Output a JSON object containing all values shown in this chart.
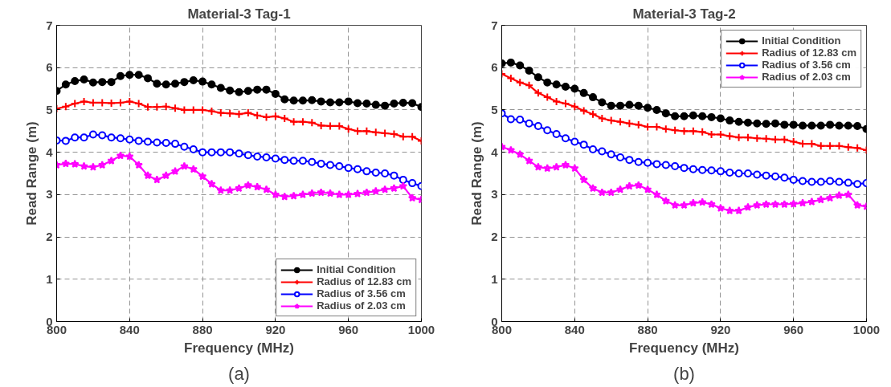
{
  "chart_data": [
    {
      "type": "line",
      "title": "Material-3 Tag-1",
      "xlabel": "Frequency (MHz)",
      "ylabel": "Read Range (m)",
      "x": [
        800,
        805,
        810,
        815,
        820,
        825,
        830,
        835,
        840,
        845,
        850,
        855,
        860,
        865,
        870,
        875,
        880,
        885,
        890,
        895,
        900,
        905,
        910,
        915,
        920,
        925,
        930,
        935,
        940,
        945,
        950,
        955,
        960,
        965,
        970,
        975,
        980,
        985,
        990,
        995,
        1000
      ],
      "xlim": [
        800,
        1000
      ],
      "ylim": [
        0,
        7
      ],
      "xticks": [
        800,
        840,
        880,
        920,
        960,
        1000
      ],
      "yticks": [
        0,
        1,
        2,
        3,
        4,
        5,
        6,
        7
      ],
      "grid": true,
      "legend": "bottom right",
      "line_style": "solid",
      "annotations": [
        "(a)"
      ],
      "series": [
        {
          "name": "Initial Condition",
          "color": "#000000",
          "marker": "circle",
          "values": [
            5.45,
            5.6,
            5.68,
            5.72,
            5.65,
            5.66,
            5.66,
            5.8,
            5.83,
            5.83,
            5.75,
            5.62,
            5.6,
            5.62,
            5.66,
            5.7,
            5.67,
            5.6,
            5.52,
            5.46,
            5.42,
            5.45,
            5.48,
            5.48,
            5.38,
            5.25,
            5.22,
            5.22,
            5.23,
            5.2,
            5.18,
            5.18,
            5.2,
            5.16,
            5.15,
            5.12,
            5.1,
            5.15,
            5.17,
            5.16,
            5.07
          ]
        },
        {
          "name": "Radius of 12.83 cm",
          "color": "#ff0000",
          "marker": "cross",
          "values": [
            5.03,
            5.08,
            5.15,
            5.2,
            5.17,
            5.17,
            5.16,
            5.17,
            5.2,
            5.15,
            5.07,
            5.07,
            5.08,
            5.04,
            5.0,
            5.0,
            5.0,
            4.97,
            4.93,
            4.92,
            4.9,
            4.93,
            4.87,
            4.83,
            4.85,
            4.8,
            4.72,
            4.72,
            4.7,
            4.63,
            4.62,
            4.62,
            4.55,
            4.5,
            4.5,
            4.47,
            4.45,
            4.43,
            4.37,
            4.37,
            4.27
          ]
        },
        {
          "name": "Radius of 3.56 cm",
          "color": "#0000ff",
          "marker": "circle",
          "values": [
            4.28,
            4.27,
            4.35,
            4.35,
            4.42,
            4.4,
            4.35,
            4.33,
            4.3,
            4.27,
            4.25,
            4.23,
            4.22,
            4.2,
            4.13,
            4.07,
            4.0,
            4.0,
            4.0,
            4.0,
            3.97,
            3.93,
            3.9,
            3.88,
            3.85,
            3.82,
            3.8,
            3.8,
            3.77,
            3.73,
            3.7,
            3.67,
            3.63,
            3.6,
            3.55,
            3.52,
            3.5,
            3.45,
            3.35,
            3.27,
            3.2
          ]
        },
        {
          "name": "Radius of 2.03 cm",
          "color": "#ff00ff",
          "marker": "star",
          "values": [
            3.7,
            3.73,
            3.72,
            3.67,
            3.65,
            3.7,
            3.8,
            3.92,
            3.9,
            3.7,
            3.45,
            3.35,
            3.45,
            3.55,
            3.67,
            3.6,
            3.43,
            3.25,
            3.1,
            3.1,
            3.15,
            3.22,
            3.18,
            3.12,
            3.0,
            2.95,
            2.97,
            3.0,
            3.03,
            3.05,
            3.03,
            3.0,
            3.0,
            3.02,
            3.05,
            3.08,
            3.12,
            3.15,
            3.2,
            2.92,
            2.88
          ]
        }
      ]
    },
    {
      "type": "line",
      "title": "Material-3 Tag-2",
      "xlabel": "Frequency (MHz)",
      "ylabel": "Read Range (m)",
      "x": [
        800,
        805,
        810,
        815,
        820,
        825,
        830,
        835,
        840,
        845,
        850,
        855,
        860,
        865,
        870,
        875,
        880,
        885,
        890,
        895,
        900,
        905,
        910,
        915,
        920,
        925,
        930,
        935,
        940,
        945,
        950,
        955,
        960,
        965,
        970,
        975,
        980,
        985,
        990,
        995,
        1000
      ],
      "xlim": [
        800,
        1000
      ],
      "ylim": [
        0,
        7
      ],
      "xticks": [
        800,
        840,
        880,
        920,
        960,
        1000
      ],
      "yticks": [
        0,
        1,
        2,
        3,
        4,
        5,
        6,
        7
      ],
      "grid": true,
      "legend": "top right",
      "line_style": "solid",
      "annotations": [
        "(b)"
      ],
      "series": [
        {
          "name": "Initial Condition",
          "color": "#000000",
          "marker": "circle",
          "values": [
            6.1,
            6.12,
            6.05,
            5.93,
            5.77,
            5.65,
            5.6,
            5.55,
            5.5,
            5.4,
            5.3,
            5.18,
            5.1,
            5.1,
            5.12,
            5.1,
            5.05,
            5.0,
            4.92,
            4.85,
            4.85,
            4.87,
            4.85,
            4.83,
            4.8,
            4.75,
            4.72,
            4.7,
            4.68,
            4.67,
            4.68,
            4.65,
            4.65,
            4.63,
            4.63,
            4.63,
            4.65,
            4.63,
            4.63,
            4.62,
            4.55
          ]
        },
        {
          "name": "Radius of 12.83 cm",
          "color": "#ff0000",
          "marker": "cross",
          "values": [
            5.85,
            5.75,
            5.65,
            5.58,
            5.4,
            5.3,
            5.2,
            5.15,
            5.08,
            4.98,
            4.9,
            4.8,
            4.75,
            4.72,
            4.68,
            4.65,
            4.6,
            4.6,
            4.55,
            4.52,
            4.5,
            4.5,
            4.48,
            4.42,
            4.42,
            4.38,
            4.35,
            4.35,
            4.33,
            4.32,
            4.3,
            4.3,
            4.25,
            4.2,
            4.2,
            4.15,
            4.15,
            4.15,
            4.12,
            4.1,
            4.05
          ]
        },
        {
          "name": "Radius of 3.56 cm",
          "color": "#0000ff",
          "marker": "circle",
          "values": [
            4.92,
            4.78,
            4.77,
            4.68,
            4.62,
            4.52,
            4.43,
            4.33,
            4.25,
            4.18,
            4.07,
            4.02,
            3.95,
            3.88,
            3.82,
            3.77,
            3.75,
            3.72,
            3.7,
            3.67,
            3.63,
            3.6,
            3.58,
            3.57,
            3.55,
            3.52,
            3.5,
            3.5,
            3.47,
            3.45,
            3.43,
            3.4,
            3.35,
            3.32,
            3.3,
            3.3,
            3.32,
            3.3,
            3.28,
            3.25,
            3.27
          ]
        },
        {
          "name": "Radius of 2.03 cm",
          "color": "#ff00ff",
          "marker": "star",
          "values": [
            4.13,
            4.05,
            3.95,
            3.8,
            3.65,
            3.62,
            3.65,
            3.7,
            3.62,
            3.35,
            3.15,
            3.05,
            3.05,
            3.12,
            3.2,
            3.22,
            3.12,
            3.0,
            2.85,
            2.75,
            2.75,
            2.8,
            2.82,
            2.77,
            2.68,
            2.62,
            2.62,
            2.7,
            2.75,
            2.77,
            2.77,
            2.77,
            2.78,
            2.8,
            2.83,
            2.88,
            2.92,
            2.98,
            3.0,
            2.75,
            2.72
          ]
        }
      ]
    }
  ]
}
